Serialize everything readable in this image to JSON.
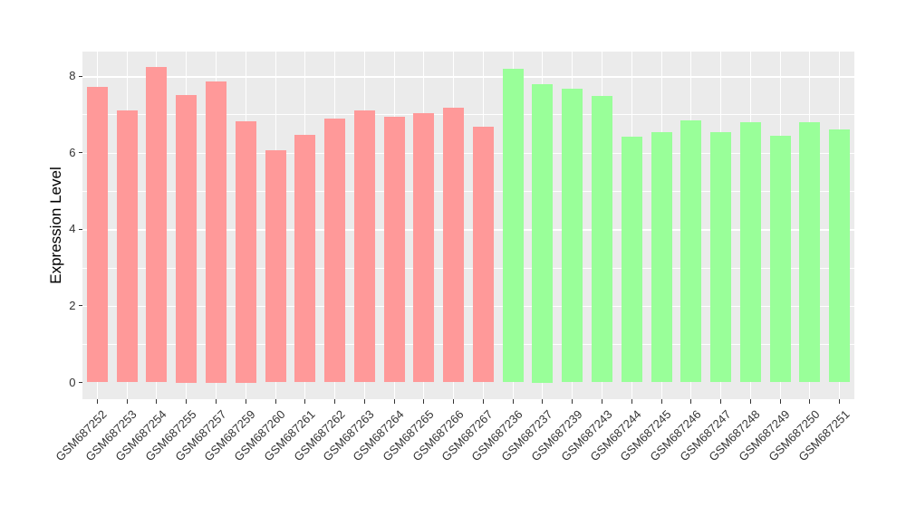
{
  "chart_data": {
    "type": "bar",
    "title": "",
    "xlabel": "",
    "ylabel": "Expression Level",
    "y_ticks": [
      0,
      2,
      4,
      6,
      8
    ],
    "ylim": [
      0,
      8.66
    ],
    "grid": "on",
    "legend": "none",
    "series": [
      {
        "name": "red-group",
        "color": "#FF9999",
        "categories": [
          "GSM687252",
          "GSM687253",
          "GSM687254",
          "GSM687255",
          "GSM687257",
          "GSM687259",
          "GSM687260",
          "GSM687261",
          "GSM687262",
          "GSM687263",
          "GSM687264",
          "GSM687265",
          "GSM687266",
          "GSM687267"
        ],
        "values": [
          7.71,
          7.11,
          8.23,
          7.5,
          7.86,
          6.82,
          6.06,
          6.47,
          6.89,
          7.1,
          6.93,
          7.03,
          7.18,
          6.67
        ]
      },
      {
        "name": "green-group",
        "color": "#99FF99",
        "categories": [
          "GSM687236",
          "GSM687237",
          "GSM687239",
          "GSM687243",
          "GSM687244",
          "GSM687245",
          "GSM687246",
          "GSM687247",
          "GSM687248",
          "GSM687249",
          "GSM687250",
          "GSM687251"
        ],
        "values": [
          8.19,
          7.79,
          7.68,
          7.48,
          6.41,
          6.53,
          6.85,
          6.53,
          6.79,
          6.45,
          6.79,
          6.61
        ]
      }
    ]
  },
  "style": {
    "panel_background": "#EBEBEB",
    "grid_color": "#FFFFFF",
    "tick_color": "#333333",
    "axis_text_color": "#333333",
    "figure_background": "#FFFFFF"
  }
}
